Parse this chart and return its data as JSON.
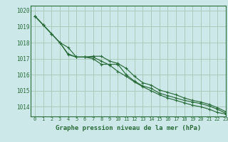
{
  "title": "Graphe pression niveau de la mer (hPa)",
  "bg_color": "#cce8e8",
  "grid_color": "#aaccbb",
  "line_color": "#2a6b3a",
  "xlim": [
    -0.5,
    23
  ],
  "ylim": [
    1013.4,
    1020.3
  ],
  "yticks": [
    1014,
    1015,
    1016,
    1017,
    1018,
    1019,
    1020
  ],
  "xticks": [
    0,
    1,
    2,
    3,
    4,
    5,
    6,
    7,
    8,
    9,
    10,
    11,
    12,
    13,
    14,
    15,
    16,
    17,
    18,
    19,
    20,
    21,
    22,
    23
  ],
  "series": [
    [
      1019.65,
      1019.1,
      1018.55,
      1018.0,
      1017.25,
      1017.1,
      1017.1,
      1017.1,
      1016.85,
      1016.6,
      1016.2,
      1015.9,
      1015.55,
      1015.25,
      1015.0,
      1014.75,
      1014.55,
      1014.4,
      1014.25,
      1014.1,
      1014.0,
      1013.85,
      1013.65,
      1013.55
    ],
    [
      1019.65,
      1019.1,
      1018.55,
      1018.0,
      1017.7,
      1017.1,
      1017.1,
      1017.0,
      1016.65,
      1016.65,
      1016.65,
      1016.0,
      1015.6,
      1015.3,
      1015.15,
      1014.85,
      1014.7,
      1014.55,
      1014.4,
      1014.3,
      1014.2,
      1014.05,
      1013.85,
      1013.6
    ],
    [
      1019.65,
      1019.1,
      1018.55,
      1018.0,
      1017.3,
      1017.1,
      1017.1,
      1017.15,
      1017.15,
      1016.85,
      1016.7,
      1016.4,
      1015.9,
      1015.5,
      1015.35,
      1015.05,
      1014.9,
      1014.75,
      1014.55,
      1014.4,
      1014.3,
      1014.15,
      1013.95,
      1013.7
    ]
  ]
}
